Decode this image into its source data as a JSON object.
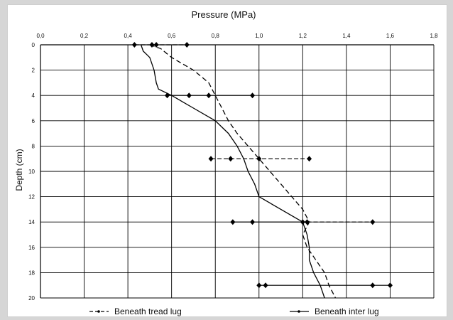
{
  "chart_data": {
    "type": "line",
    "title": "Pressure (MPa)",
    "xlabel": "Pressure (MPa)",
    "ylabel": "Depth (cm)",
    "xlim": [
      0,
      1.8
    ],
    "ylim": [
      0,
      20
    ],
    "x_ticks": [
      "0,0",
      "0,2",
      "0,4",
      "0,6",
      "0,8",
      "1,0",
      "1,2",
      "1,4",
      "1,6",
      "1,8"
    ],
    "y_ticks": [
      "0",
      "2",
      "4",
      "6",
      "8",
      "10",
      "12",
      "14",
      "16",
      "18",
      "20"
    ],
    "x_axis_position": "top",
    "y_inverted": true,
    "grid": true,
    "legend_position": "bottom",
    "series": [
      {
        "name": "Beneath tread lug",
        "style": "dashed",
        "color": "#000000",
        "points": [
          [
            0.5,
            0
          ],
          [
            0.55,
            0.3
          ],
          [
            0.6,
            1
          ],
          [
            0.7,
            2
          ],
          [
            0.77,
            3
          ],
          [
            0.8,
            4
          ],
          [
            0.83,
            5
          ],
          [
            0.86,
            6
          ],
          [
            0.9,
            7
          ],
          [
            0.95,
            8
          ],
          [
            1.0,
            9
          ],
          [
            1.05,
            10
          ],
          [
            1.1,
            11
          ],
          [
            1.15,
            12
          ],
          [
            1.2,
            13
          ],
          [
            1.23,
            14
          ],
          [
            1.2,
            15
          ],
          [
            1.22,
            16
          ],
          [
            1.26,
            17
          ],
          [
            1.3,
            18
          ],
          [
            1.32,
            19
          ],
          [
            1.35,
            20
          ]
        ],
        "error_bars": [
          {
            "depth": 0,
            "min": 0.43,
            "max": 0.67,
            "markers": [
              0.43,
              0.51,
              0.53,
              0.67
            ]
          },
          {
            "depth": 9,
            "min": 0.78,
            "max": 1.23,
            "markers": [
              0.78,
              0.87,
              1.0,
              1.23
            ]
          },
          {
            "depth": 14,
            "min": 1.22,
            "max": 1.52,
            "markers": [
              1.22,
              1.52
            ]
          }
        ]
      },
      {
        "name": "Beneath inter lug",
        "style": "solid",
        "color": "#000000",
        "points": [
          [
            0.46,
            0
          ],
          [
            0.47,
            0.5
          ],
          [
            0.5,
            1
          ],
          [
            0.52,
            2
          ],
          [
            0.53,
            3
          ],
          [
            0.54,
            3.5
          ],
          [
            0.6,
            4
          ],
          [
            0.7,
            5
          ],
          [
            0.8,
            6
          ],
          [
            0.86,
            7
          ],
          [
            0.9,
            8
          ],
          [
            0.93,
            9
          ],
          [
            0.95,
            10
          ],
          [
            0.98,
            11
          ],
          [
            1.0,
            12
          ],
          [
            1.1,
            13
          ],
          [
            1.2,
            14
          ],
          [
            1.22,
            15
          ],
          [
            1.23,
            16
          ],
          [
            1.23,
            17
          ],
          [
            1.25,
            18
          ],
          [
            1.28,
            19
          ],
          [
            1.3,
            20
          ]
        ],
        "error_bars": [
          {
            "depth": 4,
            "min": 0.58,
            "max": 0.97,
            "markers": [
              0.58,
              0.68,
              0.77,
              0.97
            ]
          },
          {
            "depth": 14,
            "min": 0.88,
            "max": 1.2,
            "markers": [
              0.88,
              0.97,
              1.2
            ]
          },
          {
            "depth": 19,
            "min": 1.0,
            "max": 1.6,
            "markers": [
              1.0,
              1.03,
              1.52,
              1.6
            ]
          }
        ]
      }
    ]
  },
  "legend": {
    "item1_label": "Beneath tread lug",
    "item2_label": "Beneath inter lug"
  }
}
